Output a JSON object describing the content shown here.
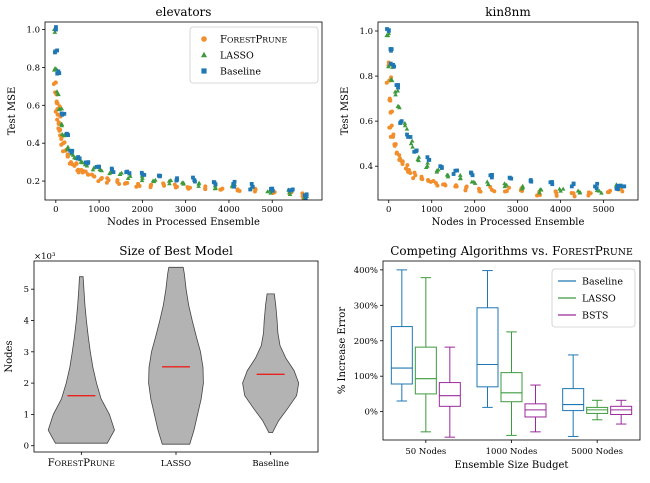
{
  "chart_data": [
    {
      "type": "scatter",
      "title": "elevators",
      "xlabel": "Nodes in Processed Ensemble",
      "ylabel": "Test MSE",
      "xlim": [
        -250,
        6150
      ],
      "ylim": [
        0.1,
        1.04
      ],
      "xticks": [
        0,
        1000,
        2000,
        3000,
        4000,
        5000
      ],
      "yticks": [
        0.2,
        0.4,
        0.6,
        0.8,
        1.0
      ],
      "ytick_labels": [
        "0.2",
        "0.4",
        "0.6",
        "0.8",
        "1.0"
      ],
      "legend": "top-right",
      "series": [
        {
          "name": "ForestPrune",
          "marker": "circle",
          "color": "#f28e2b",
          "points": [
            [
              0,
              0.72
            ],
            [
              10,
              0.66
            ],
            [
              20,
              0.62
            ],
            [
              35,
              0.58
            ],
            [
              50,
              0.55
            ],
            [
              70,
              0.51
            ],
            [
              100,
              0.47
            ],
            [
              130,
              0.43
            ],
            [
              170,
              0.4
            ],
            [
              220,
              0.36
            ],
            [
              280,
              0.33
            ],
            [
              350,
              0.3
            ],
            [
              430,
              0.28
            ],
            [
              520,
              0.26
            ],
            [
              620,
              0.245
            ],
            [
              740,
              0.235
            ],
            [
              880,
              0.225
            ],
            [
              1040,
              0.21
            ],
            [
              1220,
              0.205
            ],
            [
              1420,
              0.195
            ],
            [
              1650,
              0.19
            ],
            [
              1900,
              0.185
            ],
            [
              2200,
              0.18
            ],
            [
              2500,
              0.175
            ],
            [
              2800,
              0.17
            ],
            [
              3100,
              0.165
            ],
            [
              3450,
              0.16
            ],
            [
              3800,
              0.155
            ],
            [
              4200,
              0.15
            ],
            [
              4600,
              0.145
            ],
            [
              5000,
              0.14
            ],
            [
              5400,
              0.135
            ],
            [
              5700,
              0.12
            ]
          ]
        },
        {
          "name": "LASSO",
          "marker": "triangle",
          "color": "#3d9a3d",
          "points": [
            [
              0,
              1.0
            ],
            [
              20,
              0.79
            ],
            [
              50,
              0.66
            ],
            [
              90,
              0.58
            ],
            [
              140,
              0.5
            ],
            [
              200,
              0.44
            ],
            [
              280,
              0.38
            ],
            [
              360,
              0.35
            ],
            [
              460,
              0.32
            ],
            [
              580,
              0.3
            ],
            [
              720,
              0.28
            ],
            [
              880,
              0.27
            ],
            [
              1060,
              0.255
            ],
            [
              1260,
              0.245
            ],
            [
              1480,
              0.235
            ],
            [
              1720,
              0.225
            ],
            [
              2000,
              0.215
            ],
            [
              2300,
              0.205
            ],
            [
              2620,
              0.2
            ],
            [
              2950,
              0.19
            ],
            [
              3300,
              0.185
            ],
            [
              3680,
              0.175
            ],
            [
              4080,
              0.17
            ],
            [
              4500,
              0.16
            ],
            [
              4950,
              0.15
            ],
            [
              5400,
              0.14
            ],
            [
              5800,
              0.12
            ]
          ]
        },
        {
          "name": "Baseline",
          "marker": "square",
          "color": "#1f77b4",
          "points": [
            [
              0,
              1.0
            ],
            [
              30,
              0.89
            ],
            [
              80,
              0.77
            ],
            [
              150,
              0.55
            ],
            [
              250,
              0.45
            ],
            [
              380,
              0.36
            ],
            [
              550,
              0.32
            ],
            [
              750,
              0.3
            ],
            [
              1000,
              0.275
            ],
            [
              1300,
              0.26
            ],
            [
              1650,
              0.25
            ],
            [
              2000,
              0.235
            ],
            [
              2400,
              0.225
            ],
            [
              2800,
              0.215
            ],
            [
              3200,
              0.205
            ],
            [
              3650,
              0.195
            ],
            [
              4100,
              0.185
            ],
            [
              4550,
              0.17
            ],
            [
              5000,
              0.16
            ],
            [
              5450,
              0.15
            ],
            [
              5750,
              0.125
            ]
          ]
        }
      ]
    },
    {
      "type": "scatter",
      "title": "kin8nm",
      "xlabel": "Nodes in Processed Ensemble",
      "ylabel": "Test MSE",
      "xlim": [
        -250,
        5800
      ],
      "ylim": [
        0.25,
        1.04
      ],
      "xticks": [
        0,
        1000,
        2000,
        3000,
        4000,
        5000
      ],
      "yticks": [
        0.4,
        0.6,
        0.8,
        1.0
      ],
      "ytick_labels": [
        "0.4",
        "0.6",
        "0.8",
        "1.0"
      ],
      "series": [
        {
          "name": "ForestPrune",
          "marker": "circle",
          "color": "#f28e2b",
          "points": [
            [
              0,
              0.86
            ],
            [
              10,
              0.78
            ],
            [
              25,
              0.7
            ],
            [
              45,
              0.64
            ],
            [
              70,
              0.58
            ],
            [
              100,
              0.53
            ],
            [
              140,
              0.49
            ],
            [
              190,
              0.46
            ],
            [
              250,
              0.43
            ],
            [
              320,
              0.41
            ],
            [
              400,
              0.39
            ],
            [
              500,
              0.37
            ],
            [
              620,
              0.36
            ],
            [
              760,
              0.345
            ],
            [
              920,
              0.335
            ],
            [
              1100,
              0.325
            ],
            [
              1300,
              0.32
            ],
            [
              1550,
              0.31
            ],
            [
              1800,
              0.305
            ],
            [
              2100,
              0.3
            ],
            [
              2400,
              0.295
            ],
            [
              2750,
              0.29
            ],
            [
              3100,
              0.29
            ],
            [
              3500,
              0.285
            ],
            [
              3900,
              0.28
            ],
            [
              4300,
              0.28
            ],
            [
              4700,
              0.28
            ],
            [
              5100,
              0.285
            ],
            [
              5400,
              0.3
            ]
          ]
        },
        {
          "name": "LASSO",
          "marker": "triangle",
          "color": "#3d9a3d",
          "points": [
            [
              0,
              0.99
            ],
            [
              30,
              0.85
            ],
            [
              80,
              0.78
            ],
            [
              150,
              0.73
            ],
            [
              250,
              0.66
            ],
            [
              380,
              0.58
            ],
            [
              520,
              0.5
            ],
            [
              700,
              0.44
            ],
            [
              900,
              0.4
            ],
            [
              1120,
              0.38
            ],
            [
              1380,
              0.36
            ],
            [
              1660,
              0.345
            ],
            [
              1980,
              0.33
            ],
            [
              2320,
              0.32
            ],
            [
              2700,
              0.31
            ],
            [
              3100,
              0.3
            ],
            [
              3550,
              0.295
            ],
            [
              4000,
              0.29
            ],
            [
              4450,
              0.285
            ],
            [
              4900,
              0.29
            ],
            [
              5350,
              0.31
            ]
          ]
        },
        {
          "name": "Baseline",
          "marker": "square",
          "color": "#1f77b4",
          "points": [
            [
              0,
              1.0
            ],
            [
              40,
              0.92
            ],
            [
              100,
              0.85
            ],
            [
              180,
              0.76
            ],
            [
              300,
              0.6
            ],
            [
              450,
              0.53
            ],
            [
              650,
              0.47
            ],
            [
              900,
              0.44
            ],
            [
              1200,
              0.4
            ],
            [
              1550,
              0.38
            ],
            [
              1950,
              0.36
            ],
            [
              2400,
              0.35
            ],
            [
              2850,
              0.345
            ],
            [
              3300,
              0.335
            ],
            [
              3800,
              0.33
            ],
            [
              4300,
              0.32
            ],
            [
              4800,
              0.31
            ],
            [
              5300,
              0.3
            ],
            [
              5450,
              0.31
            ]
          ]
        }
      ]
    },
    {
      "type": "violin",
      "title": "Size of Best Model",
      "ylabel": "Nodes",
      "y_multiplier_label": "×10³",
      "ylim": [
        -0.2,
        5.9
      ],
      "yticks": [
        0,
        1,
        2,
        3,
        4,
        5
      ],
      "categories": [
        "ForestPrune",
        "LASSO",
        "Baseline"
      ],
      "medians": [
        1.6,
        2.52,
        2.28
      ],
      "colors": {
        "body": "#b3b3b3",
        "median": "#e8221c"
      },
      "profiles": [
        [
          [
            0.08,
            0.72
          ],
          [
            0.5,
            0.92
          ],
          [
            1.0,
            0.78
          ],
          [
            1.5,
            0.55
          ],
          [
            2.0,
            0.42
          ],
          [
            2.5,
            0.32
          ],
          [
            3.0,
            0.25
          ],
          [
            3.5,
            0.19
          ],
          [
            4.0,
            0.14
          ],
          [
            4.5,
            0.1
          ],
          [
            5.0,
            0.07
          ],
          [
            5.4,
            0.05
          ]
        ],
        [
          [
            0.05,
            0.38
          ],
          [
            0.5,
            0.5
          ],
          [
            1.0,
            0.6
          ],
          [
            1.5,
            0.7
          ],
          [
            2.0,
            0.76
          ],
          [
            2.5,
            0.75
          ],
          [
            3.0,
            0.68
          ],
          [
            3.5,
            0.56
          ],
          [
            4.0,
            0.45
          ],
          [
            4.5,
            0.35
          ],
          [
            5.0,
            0.28
          ],
          [
            5.5,
            0.23
          ],
          [
            5.7,
            0.2
          ]
        ],
        [
          [
            0.42,
            0.05
          ],
          [
            0.8,
            0.22
          ],
          [
            1.2,
            0.48
          ],
          [
            1.6,
            0.72
          ],
          [
            2.0,
            0.78
          ],
          [
            2.4,
            0.65
          ],
          [
            2.8,
            0.42
          ],
          [
            3.2,
            0.26
          ],
          [
            3.6,
            0.2
          ],
          [
            4.0,
            0.18
          ],
          [
            4.5,
            0.14
          ],
          [
            4.85,
            0.1
          ]
        ]
      ]
    },
    {
      "type": "box",
      "title": "Competing Algorithms vs. ForestPrune",
      "xlabel": "Ensemble Size Budget",
      "ylabel": "% Increase Error",
      "ylim": [
        -80,
        425
      ],
      "yticks": [
        0,
        100,
        200,
        300,
        400
      ],
      "ytick_labels": [
        "0%",
        "100%",
        "200%",
        "300%",
        "400%"
      ],
      "categories": [
        "50 Nodes",
        "1000 Nodes",
        "5000 Nodes"
      ],
      "legend": "top-right",
      "series": [
        {
          "name": "Baseline",
          "color": "#1f77b4",
          "boxes": [
            [
              30,
              78,
              123,
              240,
              400
            ],
            [
              12,
              70,
              133,
              293,
              398
            ],
            [
              -70,
              3,
              20,
              65,
              160
            ]
          ]
        },
        {
          "name": "LASSO",
          "color": "#3d9a3d",
          "boxes": [
            [
              -57,
              50,
              93,
              182,
              378
            ],
            [
              -67,
              28,
              53,
              110,
              225
            ],
            [
              -23,
              -5,
              5,
              12,
              32
            ]
          ]
        },
        {
          "name": "BSTS",
          "color": "#9b2a9b",
          "boxes": [
            [
              -72,
              15,
              45,
              82,
              182
            ],
            [
              -57,
              -15,
              5,
              22,
              75
            ],
            [
              -35,
              -8,
              5,
              15,
              32
            ]
          ]
        }
      ]
    }
  ]
}
